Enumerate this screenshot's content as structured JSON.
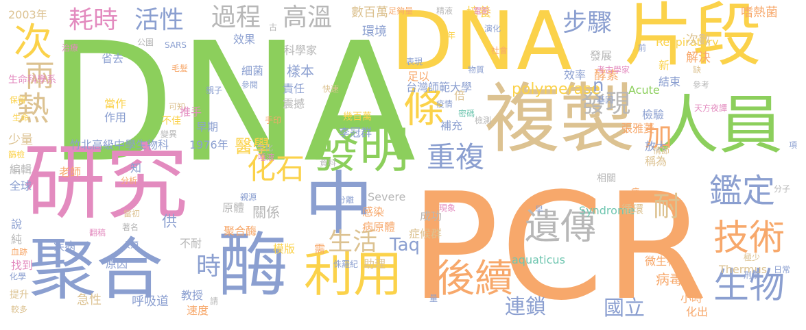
{
  "palette": {
    "green": "#8ccf5c",
    "orange": "#f7a86b",
    "pink": "#e38bbf",
    "blue": "#8b9fd0",
    "yellow": "#fbd24a",
    "tan": "#dcc291",
    "gray": "#b7b7b7",
    "teal": "#6fc6b0"
  },
  "words": [
    {
      "text": "DNA"
    },
    {
      "text": "PCR"
    },
    {
      "text": "研究"
    },
    {
      "text": "DNA"
    },
    {
      "text": "片段"
    },
    {
      "text": "複製"
    },
    {
      "text": "聚合"
    },
    {
      "text": "酶"
    },
    {
      "text": "中"
    },
    {
      "text": "人員"
    },
    {
      "text": "條"
    },
    {
      "text": "發明"
    },
    {
      "text": "利用"
    },
    {
      "text": "後續"
    },
    {
      "text": "遺傳"
    },
    {
      "text": "鑑定"
    },
    {
      "text": "技術"
    },
    {
      "text": "生物"
    },
    {
      "text": "次"
    },
    {
      "text": "熱"
    },
    {
      "text": "兩"
    },
    {
      "text": "化石"
    },
    {
      "text": "重複"
    },
    {
      "text": "過程"
    },
    {
      "text": "高溫"
    },
    {
      "text": "耗時"
    },
    {
      "text": "活性"
    },
    {
      "text": "步驟"
    },
    {
      "text": "發現"
    },
    {
      "text": "加"
    },
    {
      "text": "耐"
    },
    {
      "text": "時"
    },
    {
      "text": "生活"
    },
    {
      "text": "連鎖"
    },
    {
      "text": "國立"
    },
    {
      "text": "Taq"
    },
    {
      "text": "polymerase"
    },
    {
      "text": "醫學"
    },
    {
      "text": "2003年"
    },
    {
      "text": "少量"
    },
    {
      "text": "竹北高級中學生物科"
    },
    {
      "text": "1976年"
    },
    {
      "text": "台灣師範大學"
    },
    {
      "text": "檢驗"
    },
    {
      "text": "張雅菱"
    },
    {
      "text": "放大"
    },
    {
      "text": "稱為"
    },
    {
      "text": "病毒"
    },
    {
      "text": "微生物"
    },
    {
      "text": "Thermus"
    },
    {
      "text": "aquaticus"
    },
    {
      "text": "Severe"
    },
    {
      "text": "Acute"
    },
    {
      "text": "Respiratory"
    },
    {
      "text": "Syndrome"
    },
    {
      "text": "嗜熱菌"
    },
    {
      "text": "酵素"
    },
    {
      "text": "培養"
    },
    {
      "text": "數百萬"
    },
    {
      "text": "環境"
    },
    {
      "text": "足夠量"
    },
    {
      "text": "精液"
    },
    {
      "text": "電影"
    },
    {
      "text": "演化"
    },
    {
      "text": "社會"
    },
    {
      "text": "次數"
    },
    {
      "text": "解決"
    },
    {
      "text": "發展"
    },
    {
      "text": "考古學家"
    },
    {
      "text": "效率"
    },
    {
      "text": "結束"
    },
    {
      "text": "缺"
    },
    {
      "text": "新"
    },
    {
      "text": "參考"
    },
    {
      "text": "刑事"
    },
    {
      "text": "天方夜譚"
    },
    {
      "text": "基因"
    },
    {
      "text": "倍"
    },
    {
      "text": "補充"
    },
    {
      "text": "疫情"
    },
    {
      "text": "密碼"
    },
    {
      "text": "檢測"
    },
    {
      "text": "幾百萬"
    },
    {
      "text": "李冠群"
    },
    {
      "text": "快速"
    },
    {
      "text": "責任"
    },
    {
      "text": "震撼"
    },
    {
      "text": "細菌"
    },
    {
      "text": "參閱"
    },
    {
      "text": "樣本"
    },
    {
      "text": "科學家"
    },
    {
      "text": "效果"
    },
    {
      "text": "SARS"
    },
    {
      "text": "公園"
    },
    {
      "text": "省去"
    },
    {
      "text": "治療"
    },
    {
      "text": "生命科學系"
    },
    {
      "text": "保留"
    },
    {
      "text": "生命"
    },
    {
      "text": "當作"
    },
    {
      "text": "作用"
    },
    {
      "text": "可知"
    },
    {
      "text": "不佳"
    },
    {
      "text": "推手"
    },
    {
      "text": "早期"
    },
    {
      "text": "親子"
    },
    {
      "text": "毛髮"
    },
    {
      "text": "變異"
    },
    {
      "text": "手印"
    },
    {
      "text": "資料"
    },
    {
      "text": "生化"
    },
    {
      "text": "唾液"
    },
    {
      "text": "老師"
    },
    {
      "text": "知"
    },
    {
      "text": "分析"
    },
    {
      "text": "編輯"
    },
    {
      "text": "篩檢"
    },
    {
      "text": "全球"
    },
    {
      "text": "原體"
    },
    {
      "text": "關係"
    },
    {
      "text": "聚合酶"
    },
    {
      "text": "供"
    },
    {
      "text": "親源"
    },
    {
      "text": "分離"
    },
    {
      "text": "感染"
    },
    {
      "text": "病原體"
    },
    {
      "text": "症候群"
    },
    {
      "text": "成功"
    },
    {
      "text": "循環"
    },
    {
      "text": "病"
    },
    {
      "text": "相關"
    },
    {
      "text": "早"
    },
    {
      "text": "現象"
    },
    {
      "text": "分子"
    },
    {
      "text": "情節"
    },
    {
      "text": "項"
    },
    {
      "text": "日常"
    },
    {
      "text": "說"
    },
    {
      "text": "純"
    },
    {
      "text": "血跡"
    },
    {
      "text": "找到"
    },
    {
      "text": "化學"
    },
    {
      "text": "提升"
    },
    {
      "text": "較多"
    },
    {
      "text": "疾病"
    },
    {
      "text": "翻稿"
    },
    {
      "text": "著名"
    },
    {
      "text": "人類"
    },
    {
      "text": "當初"
    },
    {
      "text": "不耐"
    },
    {
      "text": "原因"
    },
    {
      "text": "急性"
    },
    {
      "text": "呼吸道"
    },
    {
      "text": "教授"
    },
    {
      "text": "速度"
    },
    {
      "text": "請"
    },
    {
      "text": "模版"
    },
    {
      "text": "需"
    },
    {
      "text": "侏羅紀"
    },
    {
      "text": "助理"
    },
    {
      "text": "量"
    },
    {
      "text": "小時"
    },
    {
      "text": "化出"
    },
    {
      "text": "表現"
    },
    {
      "text": "物質"
    },
    {
      "text": "足以"
    },
    {
      "text": "年"
    },
    {
      "text": "前"
    },
    {
      "text": "古"
    },
    {
      "text": "n"
    },
    {
      "text": "極少"
    }
  ]
}
